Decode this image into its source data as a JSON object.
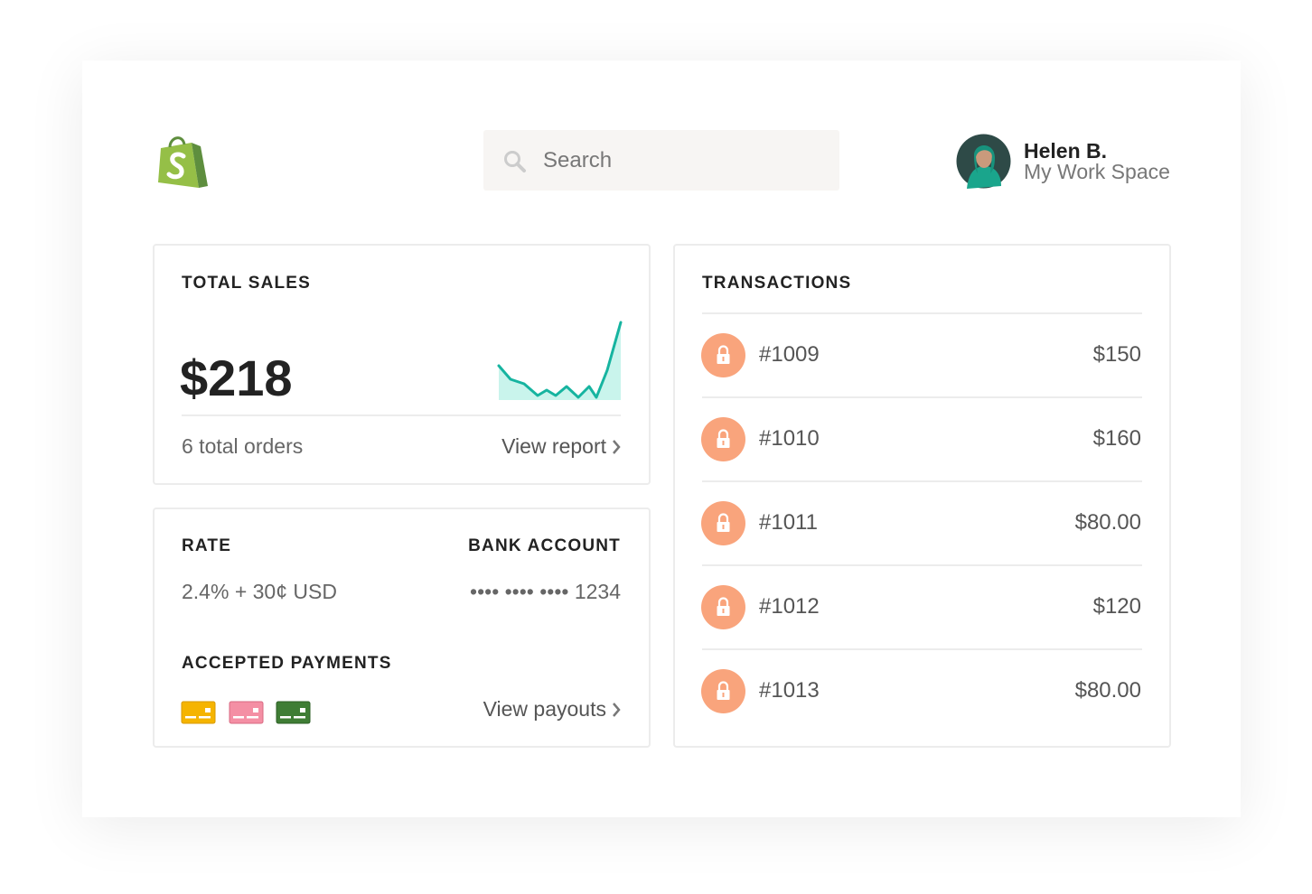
{
  "header": {
    "search_placeholder": "Search",
    "user": {
      "name": "Helen B.",
      "workspace": "My Work Space"
    }
  },
  "total_sales": {
    "title": "TOTAL SALES",
    "amount": "$218",
    "orders": "6 total orders",
    "link": "View report"
  },
  "details": {
    "rate_label": "RATE",
    "rate": "2.4% + 30¢ USD",
    "bank_label": "BANK ACCOUNT",
    "bank": "•••• •••• •••• 1234",
    "payments_label": "ACCEPTED PAYMENTS",
    "link": "View payouts"
  },
  "transactions": {
    "title": "TRANSACTIONS",
    "rows": [
      {
        "id": "#1009",
        "amount": "$150"
      },
      {
        "id": "#1010",
        "amount": "$160"
      },
      {
        "id": "#1011",
        "amount": "$80.00"
      },
      {
        "id": "#1012",
        "amount": "$120"
      },
      {
        "id": "#1013",
        "amount": "$80.00"
      }
    ]
  }
}
